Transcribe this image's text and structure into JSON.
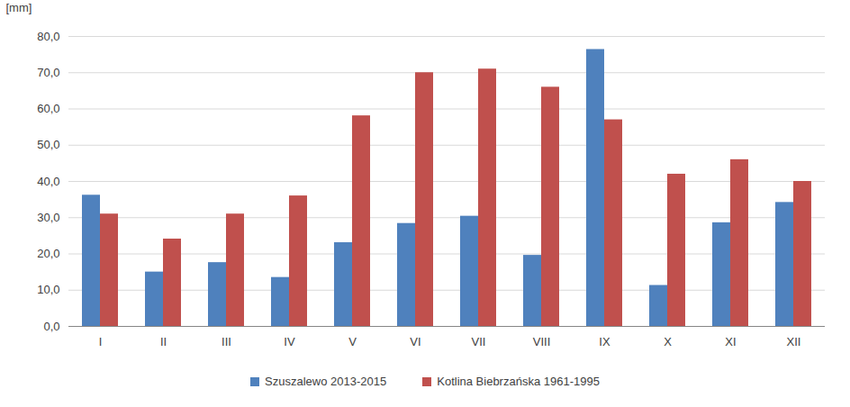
{
  "chart_data": {
    "type": "bar",
    "y_label": "[mm]",
    "categories": [
      "I",
      "II",
      "III",
      "IV",
      "V",
      "VI",
      "VII",
      "VIII",
      "IX",
      "X",
      "XI",
      "XII"
    ],
    "series": [
      {
        "name": "Szuszalewo 2013-2015",
        "color": "#4f81bd",
        "values": [
          36.2,
          15.0,
          17.6,
          13.5,
          23.1,
          28.4,
          30.4,
          19.6,
          76.4,
          11.3,
          28.6,
          34.2
        ]
      },
      {
        "name": "Kotlina Biebrzańska 1961-1995",
        "color": "#c0504d",
        "values": [
          31.0,
          24.1,
          31.0,
          36.0,
          58.1,
          70.0,
          71.0,
          66.0,
          57.0,
          42.0,
          46.0,
          40.0
        ]
      }
    ],
    "ylim": [
      0,
      80
    ],
    "yticks": [
      {
        "value": 0,
        "label": "0,0"
      },
      {
        "value": 10,
        "label": "10,0"
      },
      {
        "value": 20,
        "label": "20,0"
      },
      {
        "value": 30,
        "label": "30,0"
      },
      {
        "value": 40,
        "label": "40,0"
      },
      {
        "value": 50,
        "label": "50,0"
      },
      {
        "value": 60,
        "label": "60,0"
      },
      {
        "value": 70,
        "label": "70,0"
      },
      {
        "value": 80,
        "label": "80,0"
      }
    ],
    "grid": true,
    "legend": "bottom"
  }
}
